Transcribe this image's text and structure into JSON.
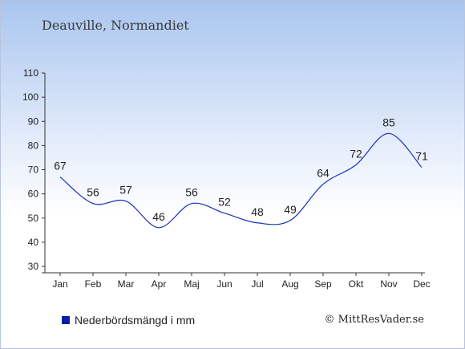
{
  "title": "Deauville, Normandiet",
  "legend": {
    "label": "Nederbördsmängd i mm",
    "color": "#0a1ea8"
  },
  "credit": "© MittResVader.se",
  "chart_data": {
    "type": "line",
    "title": "Deauville, Normandiet",
    "xlabel": "",
    "ylabel": "",
    "categories": [
      "Jan",
      "Feb",
      "Mar",
      "Apr",
      "Maj",
      "Jun",
      "Jul",
      "Aug",
      "Sep",
      "Okt",
      "Nov",
      "Dec"
    ],
    "series": [
      {
        "name": "Nederbördsmängd i mm",
        "values": [
          67,
          56,
          57,
          46,
          56,
          52,
          48,
          49,
          64,
          72,
          85,
          71
        ],
        "color": "#1a2fb8"
      }
    ],
    "ylim": [
      30,
      110
    ],
    "yticks": [
      30,
      40,
      50,
      60,
      70,
      80,
      90,
      100,
      110
    ],
    "grid": false,
    "legend_position": "bottom-left"
  }
}
